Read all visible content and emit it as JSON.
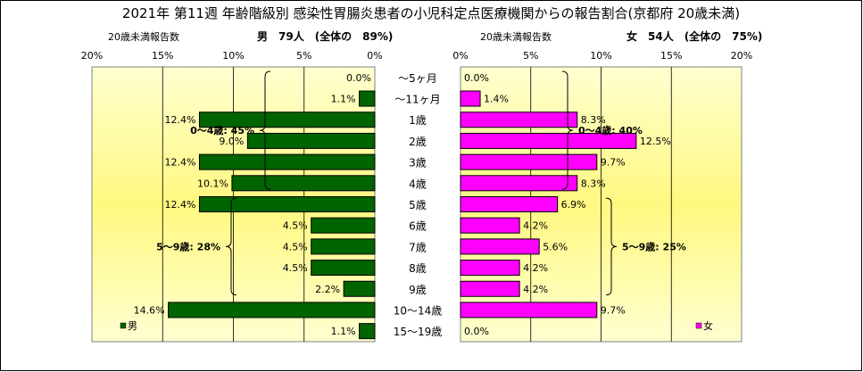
{
  "title": "2021年 第11週 年齢階級別 感染性胃腸炎患者の小児科定点医療機関からの報告割合(京都府 20歳未満)",
  "colors": {
    "male": "#006400",
    "female": "#ff00ff",
    "panel_top": "#ffffd0",
    "panel_mid": "#fff880",
    "axis": "#000000"
  },
  "chart_data": [
    {
      "type": "bar",
      "orientation": "horizontal",
      "direction": "right-to-left",
      "sublabel": "20歳未満報告数",
      "header": "男　79人　(全体の　89%)",
      "xlim": [
        0,
        20
      ],
      "ticks": [
        "20%",
        "15%",
        "10%",
        "5%",
        "0%"
      ],
      "categories": [
        "～5ヶ月",
        "～11ヶ月",
        "1歳",
        "2歳",
        "3歳",
        "4歳",
        "5歳",
        "6歳",
        "7歳",
        "8歳",
        "9歳",
        "10～14歳",
        "15～19歳"
      ],
      "series": [
        {
          "name": "男",
          "values": [
            0.0,
            1.1,
            12.4,
            9.0,
            12.4,
            10.1,
            12.4,
            4.5,
            4.5,
            4.5,
            2.2,
            14.6,
            1.1
          ]
        }
      ],
      "value_labels": [
        "0.0%",
        "1.1%",
        "12.4%",
        "9.0%",
        "12.4%",
        "10.1%",
        "12.4%",
        "4.5%",
        "4.5%",
        "4.5%",
        "2.2%",
        "14.6%",
        "1.1%"
      ],
      "annotations": [
        {
          "text": "0～4歳: 45%",
          "from": 0,
          "to": 5
        },
        {
          "text": "5～9歳: 28%",
          "from": 6,
          "to": 10
        }
      ],
      "legend": "bottom-left"
    },
    {
      "type": "bar",
      "orientation": "horizontal",
      "direction": "left-to-right",
      "sublabel": "20歳未満報告数",
      "header": "女　54人　(全体の　75%)",
      "xlim": [
        0,
        20
      ],
      "ticks": [
        "0%",
        "5%",
        "10%",
        "15%",
        "20%"
      ],
      "categories": [
        "～5ヶ月",
        "～11ヶ月",
        "1歳",
        "2歳",
        "3歳",
        "4歳",
        "5歳",
        "6歳",
        "7歳",
        "8歳",
        "9歳",
        "10～14歳",
        "15～19歳"
      ],
      "series": [
        {
          "name": "女",
          "values": [
            0.0,
            1.4,
            8.3,
            12.5,
            9.7,
            8.3,
            6.9,
            4.2,
            5.6,
            4.2,
            4.2,
            9.7,
            0.0
          ]
        }
      ],
      "value_labels": [
        "0.0%",
        "1.4%",
        "8.3%",
        "12.5%",
        "9.7%",
        "8.3%",
        "6.9%",
        "4.2%",
        "5.6%",
        "4.2%",
        "4.2%",
        "9.7%",
        "0.0%"
      ],
      "annotations": [
        {
          "text": "0～4歳: 40%",
          "from": 0,
          "to": 5
        },
        {
          "text": "5～9歳: 25%",
          "from": 6,
          "to": 10
        }
      ],
      "legend": "bottom-right"
    }
  ]
}
